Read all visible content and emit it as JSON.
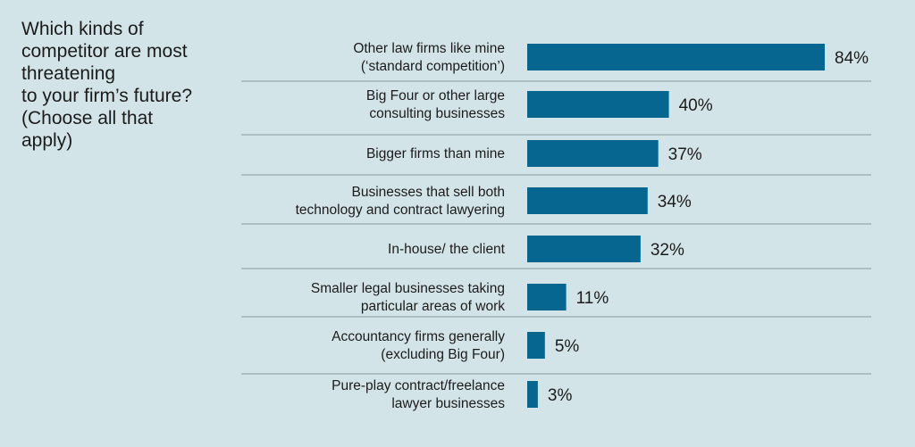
{
  "question": {
    "lines": [
      "Which kinds of",
      "competitor are most",
      "threatening",
      "to your firm’s future?",
      "(Choose all that",
      "apply)"
    ]
  },
  "colors": {
    "background": "#d3e4e9",
    "bar": "#066690",
    "divider": "#8a9aa0",
    "text": "#1b1b1b"
  },
  "chart_data": {
    "type": "bar",
    "orientation": "horizontal",
    "title": "",
    "xlabel": "",
    "ylabel": "",
    "unit": "%",
    "xlim": [
      0,
      100
    ],
    "grid": false,
    "legend": "none",
    "categories": [
      [
        "Other law firms like mine",
        "(‘standard competition’)"
      ],
      [
        "Big Four or other large",
        "consulting businesses"
      ],
      [
        "Bigger firms than mine"
      ],
      [
        "Businesses that sell both",
        "technology and contract lawyering"
      ],
      [
        "In-house/ the client"
      ],
      [
        "Smaller legal businesses taking",
        "particular areas of work"
      ],
      [
        "Accountancy firms generally",
        "(excluding Big Four)"
      ],
      [
        "Pure-play contract/freelance",
        "lawyer businesses"
      ]
    ],
    "values": [
      84,
      40,
      37,
      34,
      32,
      11,
      5,
      3
    ],
    "value_labels": [
      "84%",
      "40%",
      "37%",
      "34%",
      "32%",
      "11%",
      "5%",
      "3%"
    ]
  }
}
